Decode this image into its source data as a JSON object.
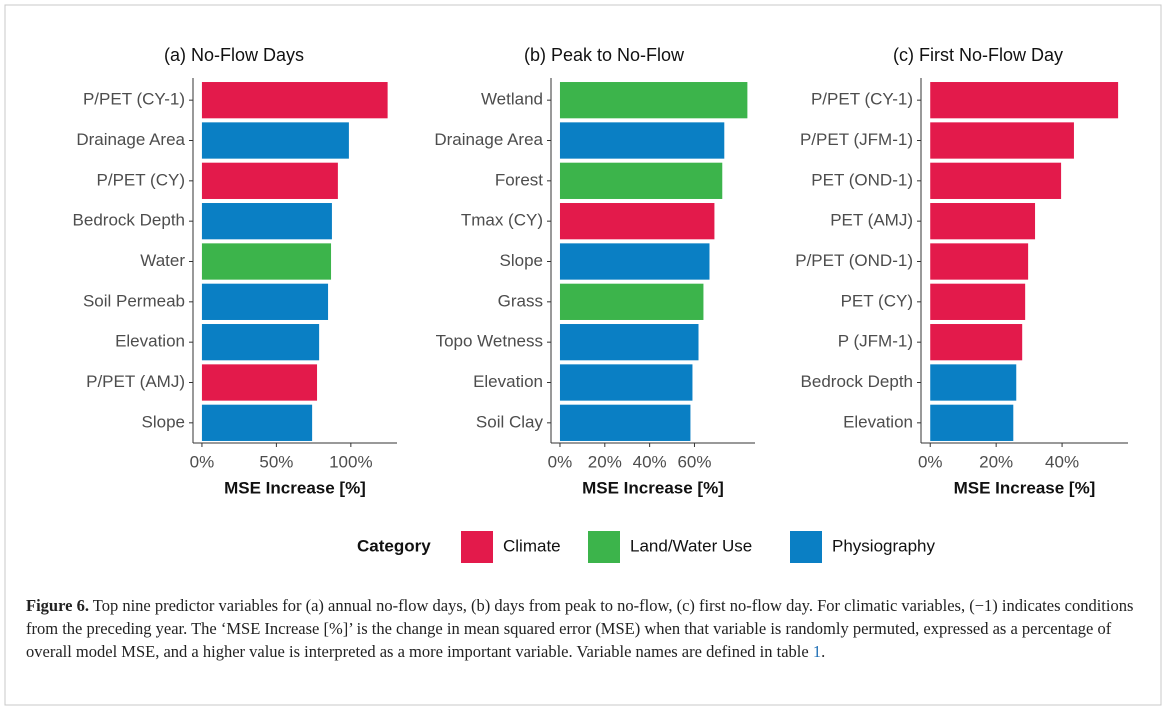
{
  "chart_data": [
    {
      "type": "barh",
      "title": "(a) No-Flow Days",
      "xlabel": "MSE Increase [%]",
      "categories": [
        "P/PET (CY-1)",
        "Drainage Area",
        "P/PET (CY)",
        "Bedrock Depth",
        "Water",
        "Soil Permeab",
        "Elevation",
        "P/PET (AMJ)",
        "Slope"
      ],
      "values": [
        124.7,
        98.7,
        91.3,
        87.3,
        86.7,
        84.7,
        78.7,
        77.3,
        74
      ],
      "colors": [
        "#e31a4b",
        "#0a7fc4",
        "#e31a4b",
        "#0a7fc4",
        "#3cb44b",
        "#0a7fc4",
        "#0a7fc4",
        "#e31a4b",
        "#0a7fc4"
      ],
      "xlim": [
        -6,
        131
      ],
      "xticks": [
        {
          "value": 0,
          "label": "0%"
        },
        {
          "value": 50,
          "label": "50%"
        },
        {
          "value": 100,
          "label": "100%"
        }
      ]
    },
    {
      "type": "barh",
      "title": "(b) Peak to No-Flow",
      "xlabel": "MSE Increase [%]",
      "categories": [
        "Wetland",
        "Drainage Area",
        "Forest",
        "Tmax (CY)",
        "Slope",
        "Grass",
        "Topo Wetness",
        "Elevation",
        "Soil Clay"
      ],
      "values": [
        83.6,
        73.3,
        72.4,
        68.9,
        66.7,
        64,
        61.8,
        59.1,
        58.2
      ],
      "colors": [
        "#3cb44b",
        "#0a7fc4",
        "#3cb44b",
        "#e31a4b",
        "#0a7fc4",
        "#3cb44b",
        "#0a7fc4",
        "#0a7fc4",
        "#0a7fc4"
      ],
      "xlim": [
        -4,
        87
      ],
      "xticks": [
        {
          "value": 0,
          "label": "0%"
        },
        {
          "value": 20,
          "label": "20%"
        },
        {
          "value": 40,
          "label": "40%"
        },
        {
          "value": 60,
          "label": "60%"
        }
      ]
    },
    {
      "type": "barh",
      "title": "(c) First No-Flow Day",
      "xlabel": "MSE Increase [%]",
      "categories": [
        "P/PET (CY-1)",
        "P/PET (JFM-1)",
        "PET (OND-1)",
        "PET (AMJ)",
        "P/PET (OND-1)",
        "PET (CY)",
        "P (JFM-1)",
        "Bedrock Depth",
        "Elevation"
      ],
      "values": [
        57,
        43.6,
        39.7,
        31.8,
        29.7,
        28.8,
        27.9,
        26.1,
        25.2
      ],
      "colors": [
        "#e31a4b",
        "#e31a4b",
        "#e31a4b",
        "#e31a4b",
        "#e31a4b",
        "#e31a4b",
        "#e31a4b",
        "#0a7fc4",
        "#0a7fc4"
      ],
      "xlim": [
        -2.8,
        60
      ],
      "xticks": [
        {
          "value": 0,
          "label": "0%"
        },
        {
          "value": 20,
          "label": "20%"
        },
        {
          "value": 40,
          "label": "40%"
        }
      ]
    }
  ],
  "legend": {
    "title": "Category",
    "items": [
      {
        "name": "Climate",
        "color": "#e31a4b"
      },
      {
        "name": "Land/Water Use",
        "color": "#3cb44b"
      },
      {
        "name": "Physiography",
        "color": "#0a7fc4"
      }
    ]
  },
  "caption": {
    "label": "Figure 6.",
    "text": "Top nine predictor variables for (a) annual no-flow days, (b) days from peak to no-flow, (c) first no-flow day. For climatic variables, (−1) indicates conditions from the preceding year. The ‘MSE Increase [%]’ is the change in mean squared error (MSE) when that variable is randomly permuted, expressed as a percentage of overall model MSE, and a higher value is interpreted as a more important variable. Variable names are defined in table ",
    "ref": "1",
    "tail": "."
  }
}
